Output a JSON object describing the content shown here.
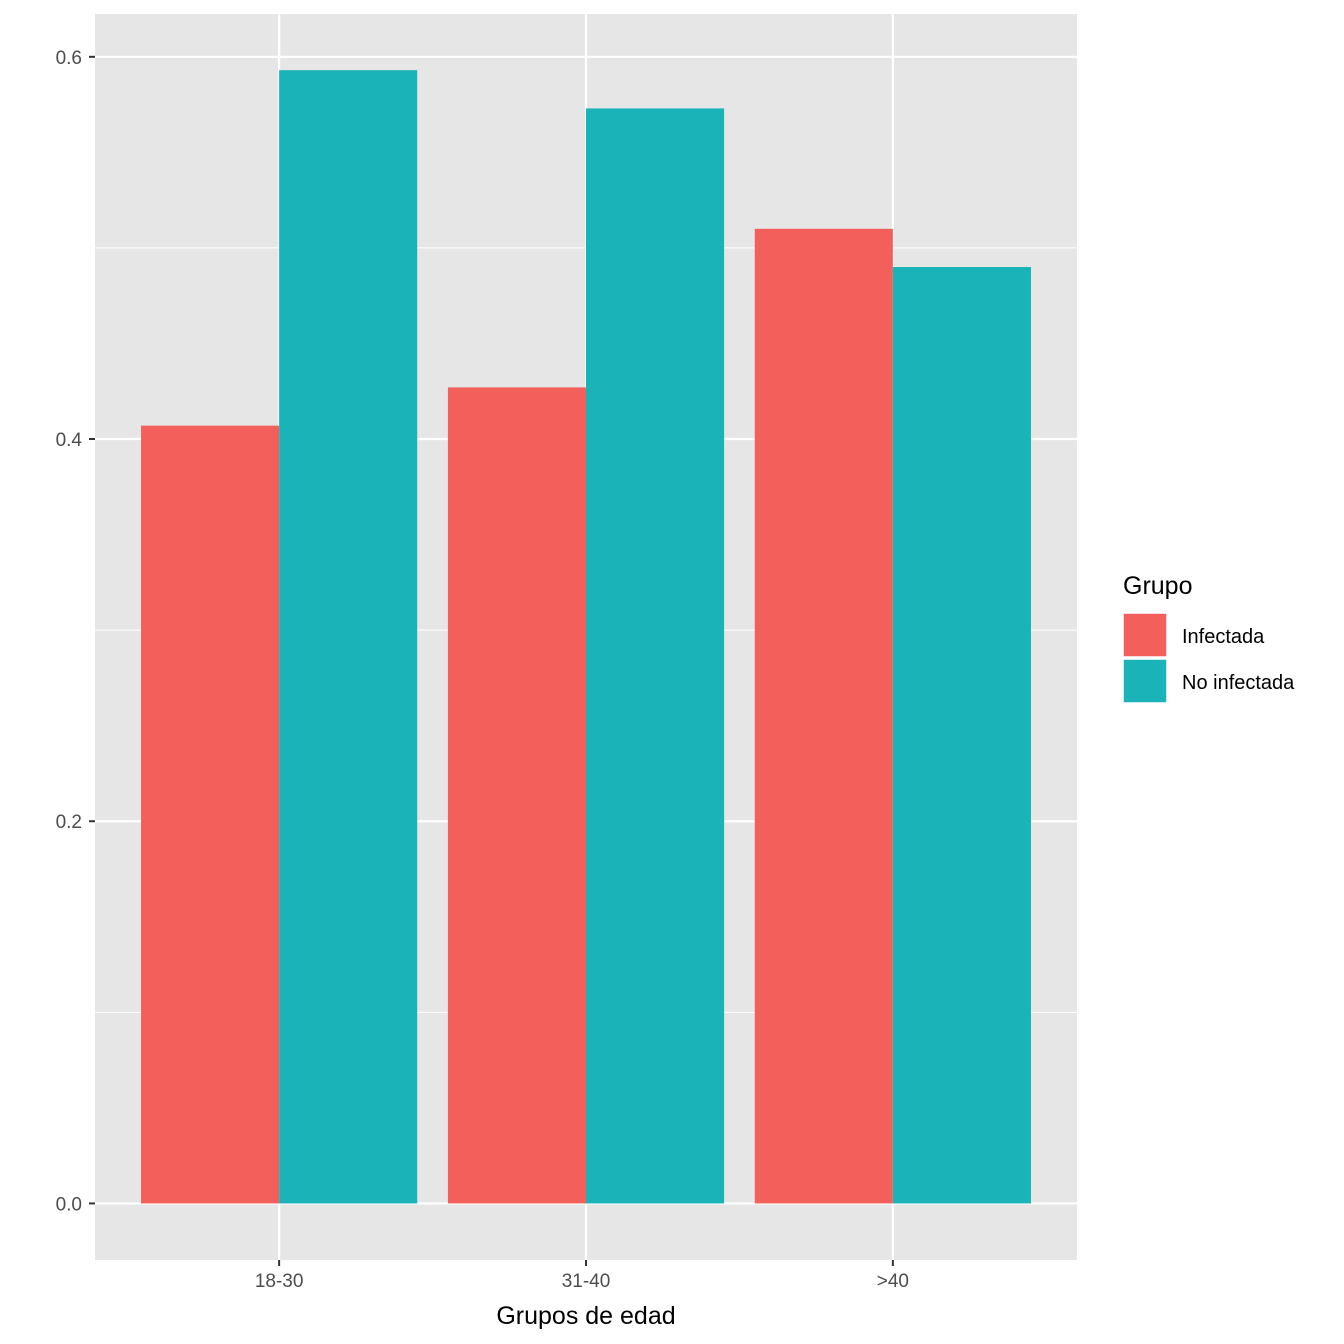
{
  "chart_data": {
    "type": "bar",
    "title": "",
    "xlabel": "Grupos de edad",
    "ylabel": "",
    "categories": [
      "18-30",
      "31-40",
      ">40"
    ],
    "series": [
      {
        "name": "Infectada",
        "color": "#F8766D",
        "values": [
          0.407,
          0.427,
          0.51
        ]
      },
      {
        "name": "No infectada",
        "color": "#00BFC4",
        "values": [
          0.593,
          0.573,
          0.49
        ]
      }
    ],
    "ylim": [
      -0.0296,
      0.6224
    ],
    "yticks": [
      0.0,
      0.2,
      0.4,
      0.6
    ],
    "ytick_labels": [
      "0.0",
      "0.2",
      "0.4",
      "0.6"
    ],
    "grid": true,
    "legend": {
      "title": "Grupo",
      "position": "right"
    },
    "colors": {
      "panel": "#EBEBEB",
      "grid": "#FFFFFF",
      "bar_infectada": "#F3605B",
      "bar_no_infectada": "#1AB3B8"
    }
  }
}
